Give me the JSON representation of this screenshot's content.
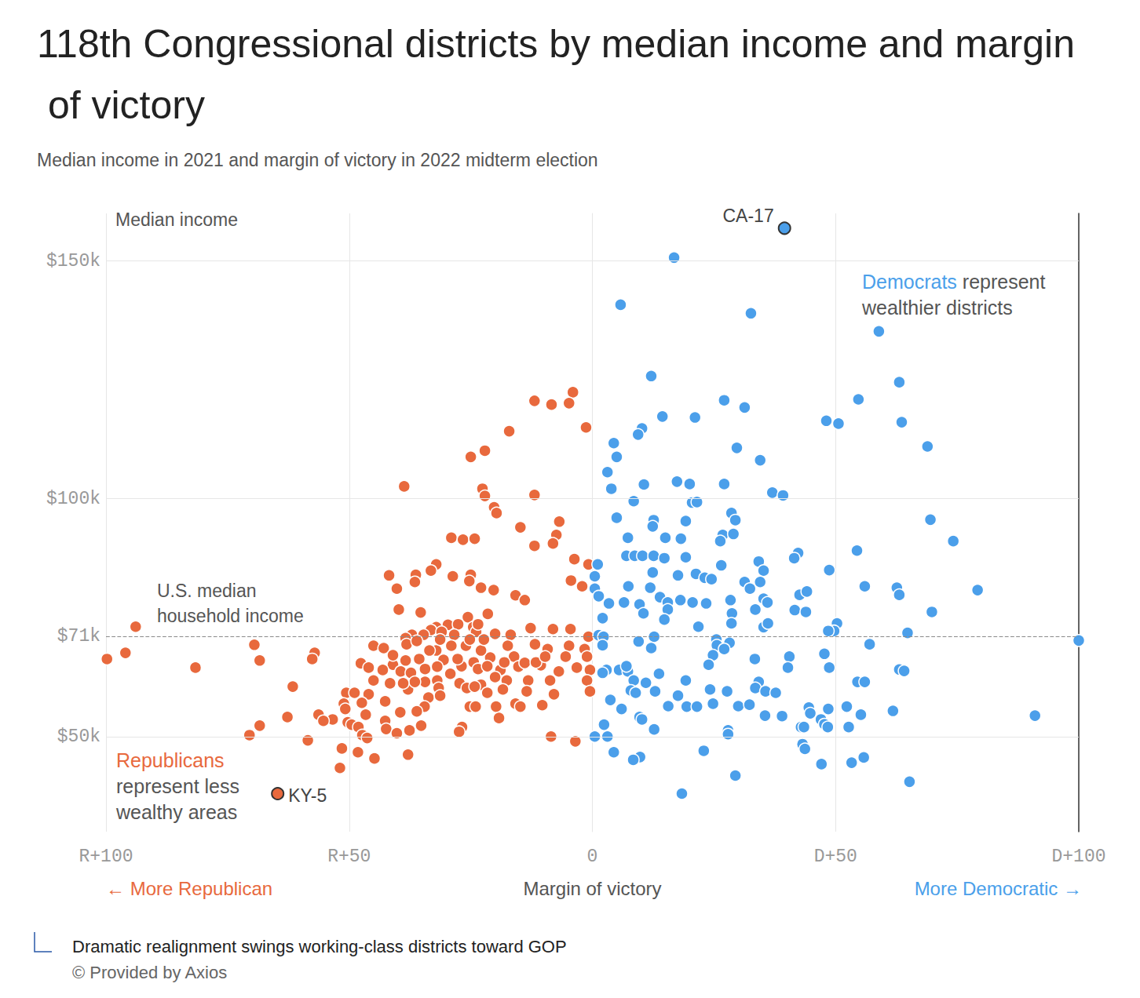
{
  "chart_data": {
    "type": "scatter",
    "title": "118th Congressional districts by median income and margin of victory",
    "subtitle": "Median income in 2021 and margin of victory in 2022 midterm election",
    "x_label": "Margin of victory",
    "y_label": "Median income",
    "xlim": [
      -100,
      100
    ],
    "xticks": [
      {
        "value": -100,
        "label": "R+100"
      },
      {
        "value": -50,
        "label": "R+50"
      },
      0,
      {
        "value": 50,
        "label": "D+50"
      },
      {
        "value": 100,
        "label": "D+100"
      }
    ],
    "ylim": [
      30,
      160
    ],
    "yticks": [
      {
        "value": 50,
        "label": "$50k"
      },
      {
        "value": 71,
        "label": "$71k"
      },
      {
        "value": 100,
        "label": "$100k"
      },
      {
        "value": 150,
        "label": "$150k"
      }
    ],
    "grid": true,
    "reference_line": {
      "value": 71,
      "label": "U.S. median\nhousehold income"
    },
    "x_direction_labels": [
      "← More Republican",
      "More Democratic →"
    ],
    "series": [
      {
        "name": "Republicans",
        "color": "#e8693d",
        "annotation": "Republicans\nrepresent less\nwealthy areas",
        "labeled_points": [
          {
            "label": "KY-5",
            "x": -64.7,
            "value": 38
          }
        ],
        "x": [
          -4,
          -11.9,
          -8.4,
          -4.8,
          -1.3,
          -17.1,
          -22.1,
          -25,
          -38.7,
          -22.6,
          -22.1,
          -11.9,
          -20.2,
          -19.7,
          -6.8,
          -14.8,
          -7.4,
          -29,
          -26.6,
          -24.2,
          -8.1,
          -11.9,
          -32.1,
          -33.2,
          -3.7,
          -0.8,
          -41.8,
          -36.3,
          -28.7,
          -25,
          -36.5,
          -25.3,
          -22.9,
          -20.3,
          -40.2,
          -15.8,
          -13.9,
          -4.4,
          -2.1,
          -39.8,
          -35.3,
          -25.6,
          -21.5,
          -93.9,
          -32.1,
          -29.7,
          -27.6,
          -24.5,
          -33.2,
          -37.1,
          -38.4,
          -34.7,
          -31,
          -28.4,
          -23.9,
          -23.5,
          -12.7,
          -8.1,
          -4.5,
          -0.8,
          -16.8,
          -20,
          -69.5,
          -45,
          -42.9,
          -38.2,
          -36.1,
          -29,
          -32.1,
          -33.5,
          -26,
          -17.4,
          -11.8,
          -9.2,
          -4.8,
          -1.6,
          -96,
          -99.8,
          -57.1,
          -68.4,
          -57.6,
          -81.6,
          -47.6,
          -41,
          -38.4,
          -35.6,
          -30.6,
          -24.4,
          -21,
          -16.1,
          -1.1,
          -5.5,
          -43.1,
          -39.4,
          -37.3,
          -34.4,
          -31.9,
          -29.2,
          -26.9,
          -23.5,
          -18.9,
          -15.2,
          -10.6,
          -6.9,
          -3.2,
          -0.5,
          -45,
          -41.6,
          -34.4,
          -31.9,
          -27.3,
          -25.8,
          -22.9,
          -20,
          -17.6,
          -13.2,
          -8.7,
          -1.1,
          -61.6,
          -37.9,
          -31.6,
          -24.2,
          -18.4,
          -13.5,
          -0.5,
          -50.6,
          -48.9,
          -46,
          -7.9,
          -33.7,
          -51.1,
          -47.4,
          -42.6,
          -34.5,
          -25.2,
          -24,
          -19.8,
          -15.8,
          -14.8,
          -10.3,
          -50.8,
          -56.3,
          -46.6,
          -39.5,
          -36.1,
          -62.7,
          -53.4,
          -55.3,
          -50.3,
          -49.5,
          -42.6,
          -19.2,
          -68.4,
          -48.1,
          -35.2,
          -26.8,
          -42.4,
          -40.2,
          -37.6,
          -27.4,
          -47.3,
          -46.3,
          -70.5,
          -58.5,
          -8.5,
          -3.5,
          -51.5,
          -48.2,
          -44.8,
          -37.9,
          -51.9,
          -31.3,
          -25.2,
          -22.9,
          -21.6,
          -13.9,
          -18.1,
          -36.5,
          -38.9,
          -31.3,
          -21.6,
          -11.6,
          -9.7,
          -22.3,
          -27.7,
          -41,
          -46
        ],
        "values": [
          122.4,
          120.6,
          119.8,
          120.1,
          115,
          114.2,
          110.1,
          108.8,
          102.6,
          102.1,
          100.6,
          100.8,
          98.2,
          97,
          95.2,
          94,
          92.4,
          91.8,
          91.4,
          91.6,
          90.6,
          90.1,
          86.2,
          84.9,
          87.3,
          86.2,
          83.9,
          84,
          83.7,
          84,
          82.5,
          82.7,
          81.3,
          80.8,
          81.1,
          79.7,
          78.7,
          82.8,
          81.6,
          76.7,
          76.1,
          75.1,
          75.8,
          73.1,
          73,
          73.5,
          73.6,
          73,
          72.4,
          71.4,
          70.7,
          71.4,
          72,
          71.4,
          72,
          73.6,
          72.8,
          72.6,
          72.6,
          71,
          71.4,
          71.6,
          69.3,
          69.1,
          68.6,
          69.4,
          70.1,
          69.1,
          68.1,
          68.1,
          69.1,
          69.1,
          69.4,
          68.4,
          69.1,
          68.4,
          67.6,
          66.3,
          67.6,
          66,
          66.3,
          64.5,
          65.4,
          65.1,
          66,
          66.3,
          66.1,
          65.6,
          66.6,
          66.8,
          66.8,
          66.8,
          64,
          63.7,
          63.4,
          64.2,
          64.7,
          63.2,
          64.8,
          64.2,
          64,
          64.7,
          65,
          63.7,
          64.5,
          64,
          61.8,
          61.2,
          61.5,
          61.8,
          61.2,
          60.2,
          60.9,
          62.5,
          61.8,
          61.8,
          61.8,
          61.8,
          60.5,
          59.9,
          60.2,
          60.5,
          59.9,
          59.5,
          59.5,
          59.2,
          59.2,
          58.9,
          58.9,
          58.2,
          56.9,
          57.1,
          57.4,
          56.3,
          56.3,
          56.3,
          56.3,
          56.9,
          56.3,
          56.6,
          55.8,
          54.6,
          54.6,
          55.1,
          55.3,
          54.1,
          53.6,
          53.3,
          53,
          52.5,
          53.3,
          53.9,
          52.3,
          52,
          52.3,
          52,
          51.6,
          50.7,
          51.3,
          51,
          50.3,
          49.7,
          50.3,
          49.2,
          50,
          49,
          47.5,
          46.7,
          45.4,
          46.2,
          43.4,
          70.4,
          70.4,
          68.1,
          64.8,
          65.5,
          65.6,
          61.5,
          61.2,
          58.6,
          59.2,
          65.6,
          66.8,
          70.4,
          66.3,
          67.1,
          64.5
        ]
      },
      {
        "name": "Democrats",
        "color": "#4b9fea",
        "annotation": "Democrats represent\nwealthier districts",
        "labeled_points": [
          {
            "label": "CA-17",
            "x": 39.5,
            "value": 156.9
          }
        ],
        "x": [
          16.8,
          5.8,
          32.6,
          58.9,
          12.1,
          63.1,
          54.7,
          27.1,
          31.3,
          14.4,
          21.1,
          48.1,
          50.6,
          63.6,
          10.2,
          9.4,
          4.4,
          68.9,
          29.7,
          5,
          34.5,
          3.1,
          10.6,
          17.4,
          20,
          27.1,
          3.9,
          37,
          39.2,
          8.5,
          20.5,
          21.5,
          28.6,
          29.4,
          5,
          12.6,
          12.4,
          19.2,
          69.5,
          26.8,
          29,
          26.3,
          7.3,
          15,
          18.2,
          74.2,
          54.4,
          7,
          8.7,
          10.3,
          12.6,
          14.8,
          19.2,
          34.2,
          42.3,
          41.5,
          48.7,
          1.1,
          12.4,
          17.6,
          21.3,
          23.1,
          24.5,
          26.5,
          35.2,
          0.5,
          31.3,
          34.5,
          56,
          62.6,
          79.2,
          7.4,
          11.9,
          32.4,
          0.5,
          42.6,
          44.1,
          63.1,
          1.3,
          3.4,
          6.5,
          9.7,
          13.9,
          15.5,
          18.1,
          20.6,
          23.4,
          28.4,
          35.2,
          36,
          33.5,
          41.6,
          43.9,
          69.8,
          15.5,
          10.5,
          2.1,
          28.7,
          14.8,
          21.8,
          28.6,
          35.2,
          36.1,
          50.3,
          49.7,
          48.5,
          1.3,
          2.3,
          64.8,
          100,
          12.7,
          9.5,
          25.5,
          28.2,
          25.6,
          27.1,
          2.1,
          12.1,
          24.8,
          57,
          33.4,
          40.5,
          47.7,
          23.9,
          2.9,
          2.1,
          5.5,
          7.3,
          7,
          13.7,
          40.2,
          48.7,
          63.1,
          64.1,
          8.5,
          19.2,
          11,
          34.2,
          54.5,
          56,
          24.2,
          27.7,
          33.5,
          35.6,
          7.9,
          8.9,
          12.9,
          3.7,
          17.6,
          37.7,
          24.8,
          19.4,
          15.6,
          21.5,
          30,
          32.3,
          6,
          9.7,
          10.2,
          12.7,
          52.3,
          44.5,
          48.5,
          44.8,
          55.2,
          61.8,
          91,
          35.5,
          39,
          47,
          47.7,
          48.4,
          42.9,
          43.5,
          52.7,
          27.9,
          27.9,
          2.4,
          0.5,
          3.1,
          43.2,
          43.7,
          4.4,
          22.9,
          9.8,
          8.4,
          47.1,
          53.3,
          55.8,
          29.4,
          65.2,
          18.4
        ],
        "values": [
          150.7,
          140.8,
          139,
          135.2,
          125.8,
          124.5,
          120.9,
          120.7,
          119.2,
          117.3,
          117.1,
          116.4,
          115.8,
          116.1,
          114.8,
          113.5,
          111.7,
          111,
          110.7,
          108.8,
          108.1,
          105.6,
          103,
          103.6,
          103.1,
          103.1,
          102.1,
          101.3,
          100.7,
          99.5,
          99.2,
          99.3,
          97,
          95.5,
          96,
          95.5,
          94.2,
          95.3,
          95.6,
          92.4,
          92.6,
          91.1,
          91.8,
          91.8,
          91.6,
          91.1,
          89.1,
          88,
          88,
          88,
          88,
          87.5,
          87.7,
          86.8,
          88.6,
          87.5,
          85,
          86.2,
          84.5,
          83.9,
          84.2,
          83.4,
          83.1,
          86,
          84.9,
          83.7,
          82.5,
          82.5,
          81.6,
          81.3,
          80.8,
          81.6,
          81.3,
          81.1,
          81.1,
          79.8,
          80.5,
          79.8,
          79.5,
          78,
          78.2,
          77.8,
          79.3,
          78.2,
          78.7,
          78.2,
          78,
          78.7,
          79,
          78.2,
          76.7,
          76.6,
          76.2,
          76.2,
          76.7,
          75.9,
          74.9,
          75.9,
          74.6,
          73.1,
          73.8,
          73,
          73.8,
          73.8,
          72.2,
          72.2,
          71.3,
          71,
          71.8,
          70.2,
          71,
          70,
          70.4,
          69.7,
          69.2,
          68.4,
          69.2,
          68.6,
          67.1,
          69.4,
          66.3,
          66.8,
          67.4,
          65.1,
          64,
          63.4,
          64,
          63.7,
          64.8,
          63.2,
          64.5,
          64.5,
          64.1,
          63.8,
          61.8,
          61.8,
          61.3,
          61.5,
          61.5,
          61.5,
          59.9,
          59.5,
          60.2,
          59.5,
          59.7,
          59.2,
          59.5,
          57.7,
          58.6,
          59.2,
          56.9,
          56.3,
          56.4,
          56.3,
          56.4,
          56.7,
          55.8,
          54.1,
          53.6,
          51.5,
          56.3,
          56.1,
          55.8,
          54.9,
          54.6,
          55.4,
          54.4,
          54.4,
          54.3,
          53.6,
          52.6,
          52,
          52,
          52,
          52,
          51.3,
          50.5,
          52.5,
          50,
          50,
          48.4,
          47.4,
          46.7,
          47,
          45.7,
          45.1,
          44.2,
          44.5,
          45.6,
          41.8,
          40.5,
          38
        ]
      }
    ],
    "caption": "Dramatic realignment swings working-class districts toward GOP",
    "source": "© Provided by Axios"
  }
}
